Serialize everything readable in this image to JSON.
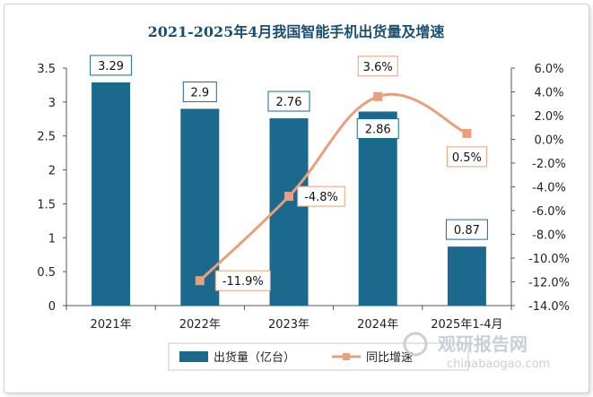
{
  "chart_data": {
    "type": "bar",
    "title": "2021-2025年4月我国智能手机出货量及增速",
    "categories": [
      "2021年",
      "2022年",
      "2023年",
      "2024年",
      "2025年1-4月"
    ],
    "series": [
      {
        "name": "出货量（亿台）",
        "type": "bar",
        "axis": "left",
        "color": "#1b6a8e",
        "values": [
          3.29,
          2.9,
          2.76,
          2.86,
          0.87
        ],
        "labels": [
          "3.29",
          "2.9",
          "2.76",
          "2.86",
          "0.87"
        ]
      },
      {
        "name": "同比增速",
        "type": "line",
        "axis": "right",
        "color": "#e8a07c",
        "values": [
          null,
          -11.9,
          -4.8,
          3.6,
          0.5
        ],
        "labels": [
          "",
          "-11.9%",
          "-4.8%",
          "3.6%",
          "0.5%"
        ]
      }
    ],
    "y_left": {
      "min": 0,
      "max": 3.5,
      "ticks": [
        "0",
        "0.5",
        "1",
        "1.5",
        "2",
        "2.5",
        "3",
        "3.5"
      ]
    },
    "y_right": {
      "min": -14,
      "max": 6,
      "ticks": [
        "-14.0%",
        "-12.0%",
        "-10.0%",
        "-8.0%",
        "-6.0%",
        "-4.0%",
        "-2.0%",
        "0.0%",
        "2.0%",
        "4.0%",
        "6.0%"
      ]
    },
    "grid": false,
    "legend_position": "bottom"
  },
  "watermark": {
    "text_cn": "观研报告网",
    "text_en": "chinabaogao.com"
  }
}
